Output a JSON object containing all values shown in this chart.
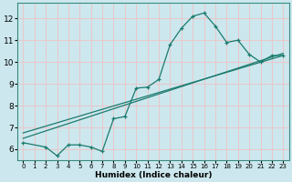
{
  "xlabel": "Humidex (Indice chaleur)",
  "ylabel": "",
  "bg_color": "#cce8ee",
  "grid_color": "#e8c8cc",
  "line_color": "#1a7a6e",
  "xlim": [
    -0.5,
    23.5
  ],
  "ylim": [
    5.5,
    12.7
  ],
  "xticks": [
    0,
    1,
    2,
    3,
    4,
    5,
    6,
    7,
    8,
    9,
    10,
    11,
    12,
    13,
    14,
    15,
    16,
    17,
    18,
    19,
    20,
    21,
    22,
    23
  ],
  "yticks": [
    6,
    7,
    8,
    9,
    10,
    11,
    12
  ],
  "line1_x": [
    0,
    2,
    3,
    4,
    5,
    6,
    7,
    8,
    9,
    10,
    11,
    12,
    13,
    14,
    15,
    16,
    17,
    18,
    19,
    20,
    21,
    22,
    23
  ],
  "line1_y": [
    6.3,
    6.1,
    5.7,
    6.2,
    6.2,
    6.1,
    5.9,
    7.4,
    7.5,
    8.8,
    8.85,
    9.2,
    10.8,
    11.55,
    12.1,
    12.25,
    11.65,
    10.9,
    11.0,
    10.35,
    10.0,
    10.3,
    10.3
  ],
  "line2_x": [
    0,
    23
  ],
  "line2_y": [
    6.5,
    10.4
  ],
  "line3_x": [
    0,
    23
  ],
  "line3_y": [
    6.75,
    10.3
  ]
}
